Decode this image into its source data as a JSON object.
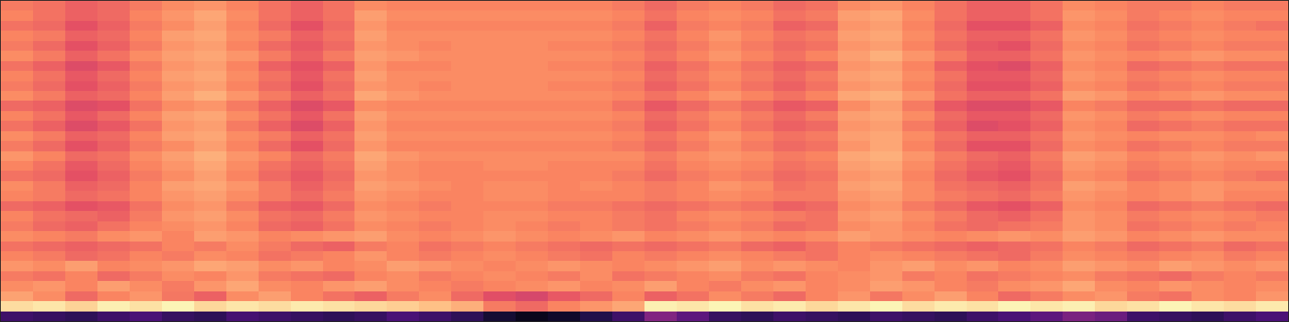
{
  "chart_data": {
    "type": "heatmap",
    "color": "magma",
    "tick_labels": false,
    "zlim": [
      0,
      105
    ],
    "values": [
      [
        22,
        20,
        18,
        22,
        25,
        20,
        18,
        24,
        22,
        20,
        18,
        20,
        25,
        22,
        18,
        10,
        5,
        8,
        15,
        22,
        40,
        30,
        20,
        18,
        22,
        20,
        18,
        22,
        20,
        18,
        22,
        25,
        30,
        38,
        34,
        22,
        20,
        18,
        22,
        25
      ],
      [
        98,
        100,
        96,
        102,
        99,
        103,
        97,
        100,
        98,
        101,
        99,
        97,
        95,
        92,
        88,
        76,
        72,
        78,
        82,
        86,
        102,
        100,
        103,
        99,
        101,
        97,
        100,
        103,
        98,
        101,
        99,
        103,
        100,
        102,
        97,
        99,
        103,
        100,
        98,
        101
      ],
      [
        85,
        80,
        72,
        78,
        82,
        75,
        70,
        80,
        84,
        78,
        74,
        70,
        76,
        80,
        72,
        65,
        62,
        68,
        72,
        78,
        70,
        74,
        80,
        76,
        72,
        78,
        82,
        75,
        80,
        84,
        78,
        72,
        76,
        80,
        82,
        76,
        74,
        80,
        78,
        82
      ],
      [
        80,
        82,
        78,
        84,
        80,
        76,
        82,
        86,
        80,
        78,
        82,
        84,
        80,
        78,
        76,
        78,
        80,
        82,
        78,
        80,
        84,
        78,
        76,
        80,
        82,
        78,
        80,
        84,
        82,
        78,
        76,
        80,
        82,
        86,
        80,
        78,
        82,
        80,
        78,
        80
      ],
      [
        76,
        74,
        78,
        72,
        76,
        80,
        78,
        82,
        76,
        74,
        72,
        78,
        80,
        76,
        78,
        80,
        78,
        76,
        80,
        74,
        76,
        78,
        80,
        76,
        74,
        78,
        80,
        82,
        76,
        78,
        74,
        76,
        78,
        80,
        76,
        74,
        72,
        76,
        78,
        76
      ],
      [
        82,
        80,
        84,
        78,
        80,
        82,
        86,
        84,
        80,
        82,
        78,
        80,
        84,
        82,
        80,
        78,
        80,
        82,
        80,
        78,
        80,
        82,
        84,
        80,
        82,
        80,
        78,
        82,
        84,
        80,
        82,
        78,
        80,
        84,
        82,
        80,
        84,
        82,
        80,
        82
      ],
      [
        78,
        76,
        72,
        74,
        78,
        76,
        80,
        78,
        74,
        76,
        78,
        82,
        78,
        76,
        78,
        80,
        78,
        76,
        74,
        78,
        76,
        78,
        80,
        78,
        76,
        74,
        78,
        80,
        78,
        76,
        74,
        72,
        76,
        80,
        78,
        76,
        78,
        80,
        76,
        78
      ],
      [
        74,
        72,
        70,
        72,
        74,
        78,
        76,
        80,
        76,
        72,
        70,
        76,
        78,
        74,
        76,
        78,
        76,
        74,
        72,
        74,
        72,
        74,
        76,
        72,
        70,
        74,
        78,
        76,
        74,
        72,
        70,
        72,
        74,
        78,
        76,
        72,
        74,
        76,
        72,
        74
      ],
      [
        80,
        78,
        76,
        80,
        82,
        78,
        84,
        82,
        78,
        80,
        82,
        84,
        80,
        78,
        80,
        82,
        80,
        78,
        80,
        82,
        78,
        80,
        82,
        80,
        78,
        80,
        84,
        82,
        80,
        78,
        80,
        82,
        80,
        84,
        82,
        78,
        80,
        82,
        80,
        80
      ],
      [
        76,
        72,
        70,
        74,
        78,
        80,
        82,
        78,
        72,
        70,
        74,
        80,
        78,
        76,
        78,
        80,
        78,
        76,
        78,
        76,
        74,
        76,
        78,
        76,
        72,
        74,
        80,
        82,
        78,
        74,
        72,
        74,
        76,
        82,
        80,
        74,
        76,
        78,
        76,
        78
      ],
      [
        78,
        74,
        72,
        70,
        76,
        82,
        84,
        80,
        74,
        72,
        76,
        82,
        80,
        78,
        78,
        80,
        80,
        78,
        78,
        76,
        74,
        78,
        80,
        78,
        76,
        74,
        82,
        84,
        80,
        76,
        72,
        70,
        74,
        82,
        80,
        76,
        78,
        80,
        78,
        76
      ],
      [
        72,
        70,
        66,
        68,
        74,
        80,
        82,
        76,
        70,
        68,
        72,
        80,
        78,
        76,
        78,
        78,
        78,
        76,
        76,
        74,
        72,
        74,
        76,
        74,
        70,
        72,
        80,
        82,
        76,
        72,
        68,
        66,
        70,
        80,
        78,
        72,
        74,
        76,
        74,
        72
      ],
      [
        78,
        76,
        72,
        74,
        78,
        82,
        84,
        80,
        76,
        72,
        76,
        82,
        80,
        78,
        78,
        80,
        80,
        78,
        78,
        78,
        76,
        78,
        80,
        78,
        76,
        76,
        82,
        84,
        80,
        76,
        74,
        72,
        76,
        82,
        80,
        78,
        80,
        82,
        78,
        78
      ],
      [
        80,
        76,
        70,
        72,
        78,
        84,
        86,
        82,
        76,
        70,
        74,
        84,
        82,
        80,
        78,
        80,
        80,
        78,
        80,
        78,
        76,
        78,
        82,
        80,
        74,
        76,
        84,
        86,
        80,
        74,
        72,
        70,
        74,
        84,
        82,
        78,
        80,
        82,
        80,
        80
      ],
      [
        74,
        72,
        66,
        70,
        76,
        80,
        84,
        78,
        72,
        68,
        72,
        82,
        80,
        78,
        78,
        78,
        78,
        78,
        78,
        76,
        72,
        76,
        78,
        76,
        72,
        74,
        82,
        84,
        78,
        72,
        68,
        66,
        72,
        80,
        78,
        74,
        76,
        78,
        76,
        74
      ],
      [
        78,
        74,
        68,
        72,
        78,
        82,
        86,
        80,
        74,
        70,
        74,
        84,
        80,
        78,
        78,
        80,
        80,
        78,
        78,
        78,
        74,
        78,
        80,
        78,
        74,
        76,
        84,
        86,
        80,
        74,
        70,
        68,
        74,
        82,
        80,
        76,
        78,
        80,
        78,
        78
      ],
      [
        82,
        78,
        72,
        74,
        80,
        84,
        88,
        82,
        78,
        72,
        76,
        86,
        82,
        80,
        80,
        80,
        80,
        80,
        80,
        80,
        76,
        80,
        82,
        80,
        76,
        78,
        86,
        88,
        82,
        76,
        72,
        70,
        76,
        84,
        82,
        78,
        80,
        82,
        80,
        82
      ],
      [
        76,
        72,
        66,
        70,
        76,
        80,
        84,
        78,
        72,
        66,
        72,
        82,
        78,
        78,
        78,
        78,
        78,
        78,
        78,
        76,
        72,
        76,
        80,
        76,
        72,
        74,
        82,
        86,
        78,
        72,
        66,
        66,
        72,
        80,
        78,
        74,
        76,
        78,
        76,
        76
      ],
      [
        80,
        76,
        70,
        72,
        78,
        84,
        86,
        80,
        76,
        70,
        74,
        84,
        80,
        80,
        80,
        80,
        80,
        80,
        80,
        78,
        74,
        78,
        82,
        78,
        74,
        76,
        84,
        86,
        80,
        74,
        70,
        70,
        74,
        82,
        80,
        78,
        80,
        80,
        78,
        80
      ],
      [
        74,
        70,
        64,
        68,
        74,
        82,
        84,
        76,
        70,
        64,
        70,
        82,
        78,
        78,
        78,
        78,
        78,
        78,
        78,
        76,
        70,
        74,
        78,
        74,
        70,
        72,
        82,
        84,
        76,
        70,
        64,
        66,
        70,
        80,
        78,
        72,
        74,
        76,
        74,
        74
      ],
      [
        78,
        74,
        68,
        72,
        78,
        84,
        86,
        80,
        74,
        68,
        74,
        84,
        80,
        80,
        80,
        80,
        80,
        80,
        80,
        78,
        72,
        76,
        80,
        76,
        72,
        76,
        84,
        86,
        80,
        72,
        68,
        68,
        72,
        82,
        80,
        76,
        78,
        80,
        78,
        78
      ],
      [
        72,
        70,
        64,
        66,
        74,
        80,
        82,
        76,
        70,
        64,
        68,
        80,
        78,
        78,
        78,
        78,
        78,
        78,
        78,
        74,
        68,
        72,
        76,
        72,
        68,
        70,
        80,
        84,
        76,
        68,
        64,
        64,
        68,
        78,
        76,
        72,
        72,
        74,
        72,
        72
      ],
      [
        80,
        76,
        70,
        72,
        78,
        84,
        88,
        82,
        76,
        70,
        74,
        86,
        82,
        80,
        80,
        80,
        80,
        80,
        80,
        78,
        74,
        78,
        82,
        78,
        74,
        78,
        86,
        88,
        82,
        74,
        70,
        70,
        74,
        84,
        82,
        78,
        80,
        82,
        80,
        80
      ],
      [
        76,
        72,
        66,
        70,
        76,
        82,
        84,
        78,
        72,
        66,
        72,
        82,
        80,
        78,
        80,
        80,
        80,
        78,
        78,
        76,
        70,
        74,
        78,
        74,
        70,
        74,
        82,
        84,
        78,
        72,
        66,
        66,
        70,
        80,
        78,
        74,
        76,
        78,
        76,
        76
      ],
      [
        78,
        74,
        68,
        72,
        78,
        84,
        86,
        80,
        74,
        68,
        74,
        84,
        80,
        80,
        80,
        80,
        80,
        80,
        80,
        78,
        72,
        76,
        80,
        76,
        72,
        76,
        84,
        86,
        80,
        74,
        68,
        68,
        72,
        82,
        80,
        76,
        78,
        80,
        78,
        78
      ],
      [
        74,
        70,
        64,
        68,
        76,
        82,
        84,
        78,
        70,
        66,
        70,
        82,
        78,
        78,
        80,
        80,
        80,
        78,
        78,
        76,
        70,
        74,
        78,
        74,
        70,
        72,
        82,
        84,
        78,
        70,
        66,
        64,
        70,
        80,
        78,
        72,
        74,
        76,
        74,
        74
      ],
      [
        80,
        76,
        70,
        74,
        80,
        84,
        86,
        82,
        76,
        70,
        76,
        84,
        82,
        80,
        80,
        80,
        80,
        80,
        80,
        78,
        74,
        78,
        82,
        78,
        74,
        78,
        84,
        88,
        82,
        76,
        70,
        70,
        74,
        82,
        80,
        78,
        80,
        82,
        80,
        80
      ],
      [
        76,
        72,
        66,
        70,
        76,
        82,
        84,
        78,
        72,
        68,
        72,
        82,
        80,
        78,
        80,
        80,
        80,
        78,
        78,
        76,
        72,
        76,
        80,
        76,
        72,
        74,
        82,
        84,
        78,
        72,
        68,
        66,
        72,
        80,
        78,
        74,
        76,
        78,
        76,
        76
      ],
      [
        78,
        76,
        70,
        72,
        78,
        84,
        86,
        80,
        76,
        70,
        74,
        84,
        80,
        80,
        80,
        80,
        80,
        80,
        80,
        78,
        74,
        78,
        82,
        78,
        74,
        76,
        84,
        86,
        80,
        74,
        70,
        70,
        74,
        82,
        80,
        76,
        78,
        80,
        78,
        78
      ],
      [
        74,
        72,
        66,
        70,
        76,
        80,
        84,
        78,
        72,
        66,
        72,
        82,
        78,
        78,
        78,
        78,
        78,
        78,
        78,
        76,
        70,
        76,
        78,
        76,
        70,
        72,
        82,
        84,
        78,
        72,
        66,
        66,
        70,
        80,
        78,
        74,
        76,
        78,
        76,
        74
      ],
      [
        78,
        74,
        70,
        72,
        78,
        82,
        86,
        80,
        74,
        70,
        74,
        84,
        80,
        80,
        80,
        80,
        80,
        80,
        80,
        78,
        74,
        78,
        80,
        78,
        74,
        76,
        84,
        86,
        80,
        74,
        70,
        70,
        74,
        82,
        80,
        76,
        78,
        80,
        78,
        78
      ],
      [
        76,
        74,
        70,
        72,
        76,
        80,
        82,
        78,
        74,
        70,
        74,
        80,
        78,
        78,
        78,
        78,
        78,
        78,
        78,
        76,
        72,
        76,
        78,
        76,
        72,
        74,
        80,
        82,
        78,
        74,
        70,
        70,
        74,
        80,
        78,
        76,
        76,
        78,
        76,
        76
      ]
    ]
  }
}
